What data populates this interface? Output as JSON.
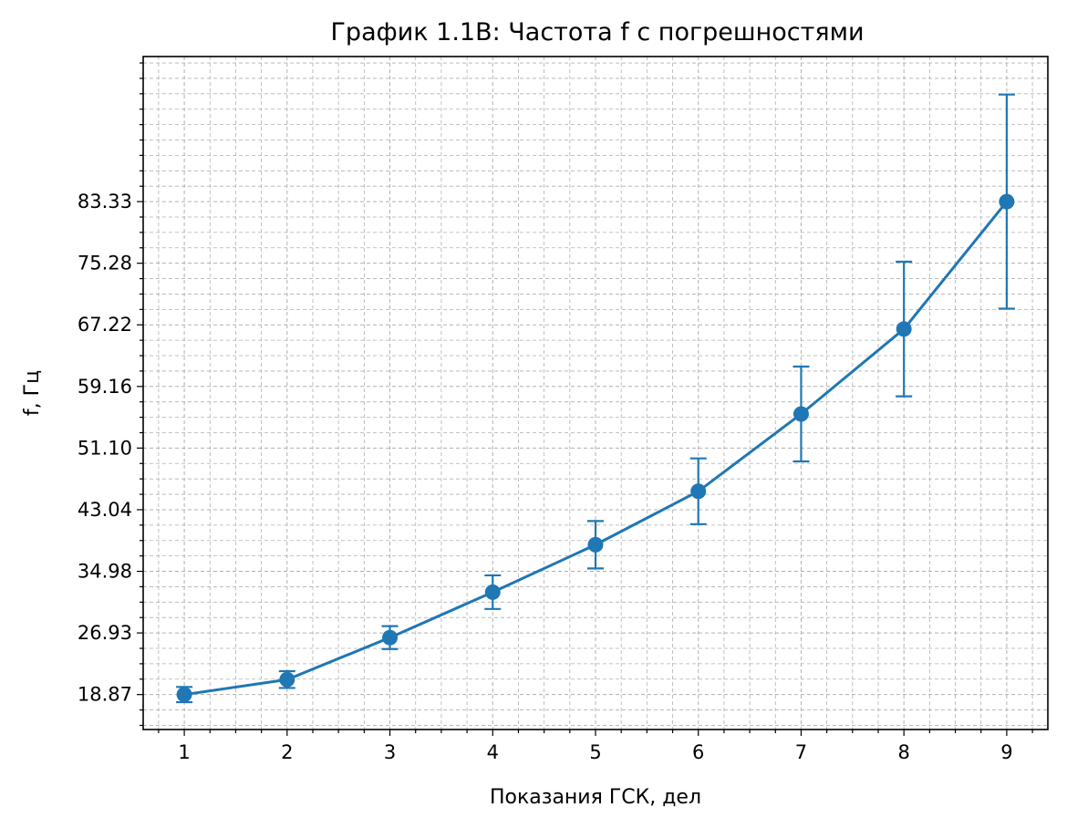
{
  "chart_data": {
    "type": "line",
    "title": "График 1.1В: Частота f с погрешностями",
    "xlabel": "Показания ГСК, дел",
    "ylabel": "f, Гц",
    "x": [
      1,
      2,
      3,
      4,
      5,
      6,
      7,
      8,
      9
    ],
    "xticks": [
      "1",
      "2",
      "3",
      "4",
      "5",
      "6",
      "7",
      "8",
      "9"
    ],
    "xlim": [
      0.6,
      9.4
    ],
    "yticks": [
      18.87,
      26.93,
      34.98,
      43.04,
      51.1,
      59.16,
      67.22,
      75.28,
      83.33
    ],
    "ytick_labels": [
      "18.87",
      "26.93",
      "34.98",
      "43.04",
      "51.10",
      "59.16",
      "67.22",
      "75.28",
      "83.33"
    ],
    "ylim": [
      14.3,
      102.3
    ],
    "grid": true,
    "series": [
      {
        "values": [
          18.87,
          20.83,
          26.32,
          32.26,
          38.46,
          45.45,
          55.56,
          66.67,
          83.33
        ],
        "errors": [
          1.0,
          1.1,
          1.5,
          2.2,
          3.1,
          4.3,
          6.2,
          8.8,
          14.0
        ],
        "color": "#1f77b4"
      }
    ]
  }
}
